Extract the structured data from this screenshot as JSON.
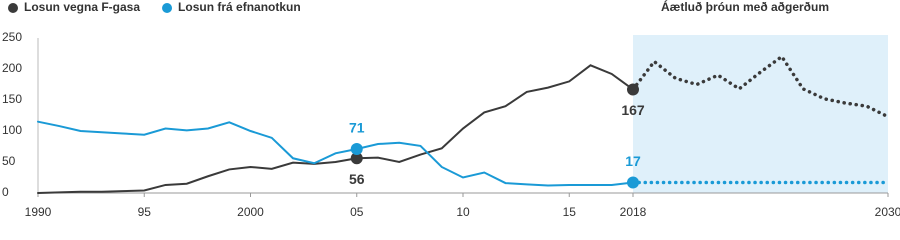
{
  "chart_data": {
    "type": "line",
    "x": [
      1990,
      1991,
      1992,
      1993,
      1994,
      1995,
      1996,
      1997,
      1998,
      1999,
      2000,
      2001,
      2002,
      2003,
      2004,
      2005,
      2006,
      2007,
      2008,
      2009,
      2010,
      2011,
      2012,
      2013,
      2014,
      2015,
      2016,
      2017,
      2018,
      2019,
      2020,
      2021,
      2022,
      2023,
      2024,
      2025,
      2026,
      2027,
      2028,
      2029,
      2030
    ],
    "series": [
      {
        "name": "Losun vegna F-gasa",
        "color": "#3a3a3a",
        "label_position": "below",
        "values": [
          0,
          1,
          2,
          2,
          3,
          4,
          13,
          15,
          27,
          38,
          42,
          39,
          49,
          47,
          50,
          56,
          57,
          50,
          62,
          72,
          104,
          130,
          140,
          163,
          170,
          180,
          206,
          192,
          167,
          212,
          185,
          175,
          190,
          168,
          195,
          220,
          168,
          152,
          145,
          140,
          123
        ]
      },
      {
        "name": "Losun frá efnanotkun",
        "color": "#1a9ad6",
        "label_position": "above",
        "values": [
          115,
          108,
          100,
          98,
          96,
          94,
          104,
          101,
          104,
          114,
          100,
          89,
          56,
          48,
          64,
          71,
          79,
          81,
          76,
          42,
          25,
          33,
          16,
          14,
          12,
          13,
          13,
          13,
          17,
          17,
          17,
          17,
          17,
          17,
          17,
          17,
          17,
          17,
          17,
          17,
          17
        ]
      }
    ],
    "labeled_points": [
      2005,
      2018
    ],
    "projection": {
      "xlim": [
        2018,
        2030
      ],
      "label": "Áætluð þróun með aðgerðum",
      "color": "#dff0fa"
    },
    "xlim": [
      1990,
      2030
    ],
    "xticks": [
      1990,
      {
        "value": 1995,
        "label": "95"
      },
      2000,
      {
        "value": 2005,
        "label": "05"
      },
      {
        "value": 2010,
        "label": "10"
      },
      {
        "value": 2015,
        "label": "15"
      },
      2018,
      2030
    ],
    "ylim": [
      0,
      250
    ],
    "yticks": [
      0,
      50,
      100,
      150,
      200,
      250
    ],
    "grid": false
  }
}
